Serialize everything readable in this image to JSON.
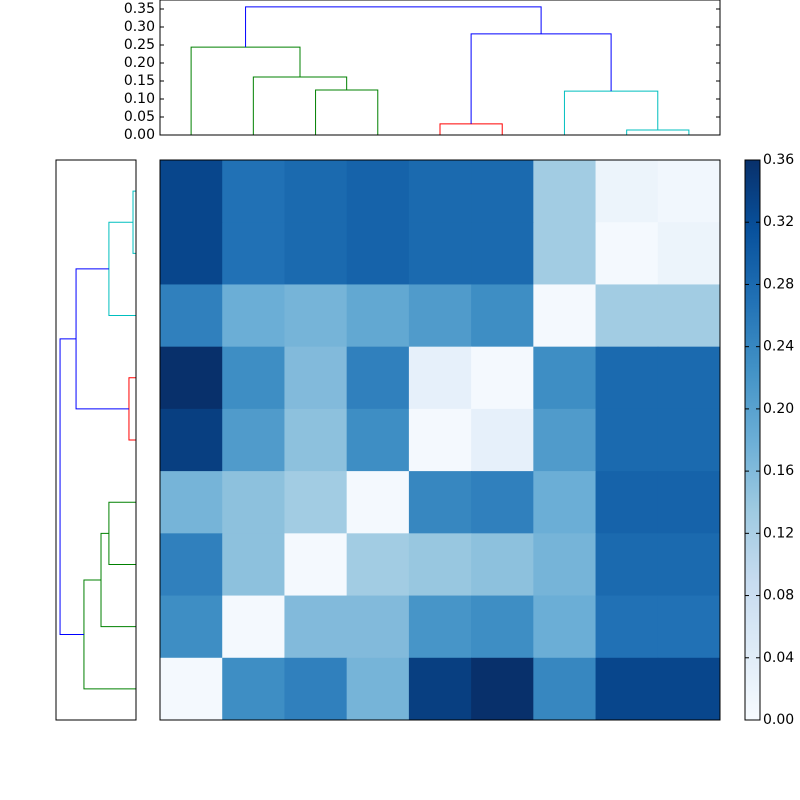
{
  "chart_data": [
    {
      "type": "heatmap",
      "matrix": [
        [
          0.33,
          0.27,
          0.28,
          0.29,
          0.28,
          0.28,
          0.13,
          0.02,
          0.01
        ],
        [
          0.33,
          0.27,
          0.28,
          0.29,
          0.28,
          0.28,
          0.13,
          0.005,
          0.02
        ],
        [
          0.25,
          0.18,
          0.17,
          0.19,
          0.21,
          0.23,
          0.005,
          0.13,
          0.13
        ],
        [
          0.36,
          0.23,
          0.16,
          0.25,
          0.03,
          0.005,
          0.23,
          0.28,
          0.28
        ],
        [
          0.34,
          0.21,
          0.15,
          0.23,
          0.005,
          0.03,
          0.21,
          0.28,
          0.28
        ],
        [
          0.17,
          0.15,
          0.13,
          0.005,
          0.24,
          0.25,
          0.18,
          0.29,
          0.29
        ],
        [
          0.25,
          0.15,
          0.005,
          0.13,
          0.14,
          0.15,
          0.17,
          0.28,
          0.28
        ],
        [
          0.23,
          0.005,
          0.16,
          0.16,
          0.22,
          0.23,
          0.18,
          0.27,
          0.27
        ],
        [
          0.005,
          0.23,
          0.25,
          0.17,
          0.34,
          0.36,
          0.24,
          0.33,
          0.33
        ]
      ],
      "colormap": [
        "#f7fbff",
        "#deebf7",
        "#c6dbef",
        "#9ecae1",
        "#6baed6",
        "#4292c6",
        "#2171b5",
        "#08519c",
        "#08306b"
      ],
      "clim": [
        0,
        0.36
      ],
      "colorbar_ticks": [
        {
          "value": 0,
          "label": "0.00"
        },
        {
          "value": 0.04,
          "label": "0.04"
        },
        {
          "value": 0.08,
          "label": "0.08"
        },
        {
          "value": 0.12,
          "label": "0.12"
        },
        {
          "value": 0.16,
          "label": "0.16"
        },
        {
          "value": 0.2,
          "label": "0.20"
        },
        {
          "value": 0.24,
          "label": "0.24"
        },
        {
          "value": 0.28,
          "label": "0.28"
        },
        {
          "value": 0.32,
          "label": "0.32"
        },
        {
          "value": 0.36,
          "label": "0.36"
        }
      ]
    },
    {
      "type": "dendrogram",
      "orientation": "top",
      "ylim": [
        0,
        0.375
      ],
      "yticks": [
        {
          "value": 0,
          "label": "0.00"
        },
        {
          "value": 0.05,
          "label": "0.05"
        },
        {
          "value": 0.1,
          "label": "0.10"
        },
        {
          "value": 0.15,
          "label": "0.15"
        },
        {
          "value": 0.2,
          "label": "0.20"
        },
        {
          "value": 0.25,
          "label": "0.25"
        },
        {
          "value": 0.3,
          "label": "0.30"
        },
        {
          "value": 0.35,
          "label": "0.35"
        }
      ],
      "links": [
        {
          "children": [
            2,
            3
          ],
          "height": 0.125,
          "color": "#008000"
        },
        {
          "children": [
            1,
            9
          ],
          "height": 0.161,
          "color": "#008000"
        },
        {
          "children": [
            0,
            10
          ],
          "height": 0.244,
          "color": "#008000"
        },
        {
          "children": [
            4,
            5
          ],
          "height": 0.031,
          "color": "#ff0000"
        },
        {
          "children": [
            7,
            8
          ],
          "height": 0.014,
          "color": "#00bfbf"
        },
        {
          "children": [
            6,
            13
          ],
          "height": 0.122,
          "color": "#00bfbf"
        },
        {
          "children": [
            12,
            14
          ],
          "height": 0.281,
          "color": "#0000ff"
        },
        {
          "children": [
            11,
            15
          ],
          "height": 0.356,
          "color": "#0000ff"
        }
      ]
    },
    {
      "type": "dendrogram",
      "orientation": "left",
      "xlim": [
        0.375,
        0
      ],
      "links": [
        {
          "children": [
            0,
            1
          ],
          "height": 0.014,
          "color": "#00bfbf"
        },
        {
          "children": [
            9,
            2
          ],
          "height": 0.127,
          "color": "#00bfbf"
        },
        {
          "children": [
            3,
            4
          ],
          "height": 0.033,
          "color": "#ff0000"
        },
        {
          "children": [
            10,
            11
          ],
          "height": 0.281,
          "color": "#0000ff"
        },
        {
          "children": [
            5,
            6
          ],
          "height": 0.127,
          "color": "#008000"
        },
        {
          "children": [
            13,
            7
          ],
          "height": 0.164,
          "color": "#008000"
        },
        {
          "children": [
            14,
            8
          ],
          "height": 0.244,
          "color": "#008000"
        },
        {
          "children": [
            12,
            15
          ],
          "height": 0.356,
          "color": "#0000ff"
        }
      ]
    }
  ]
}
